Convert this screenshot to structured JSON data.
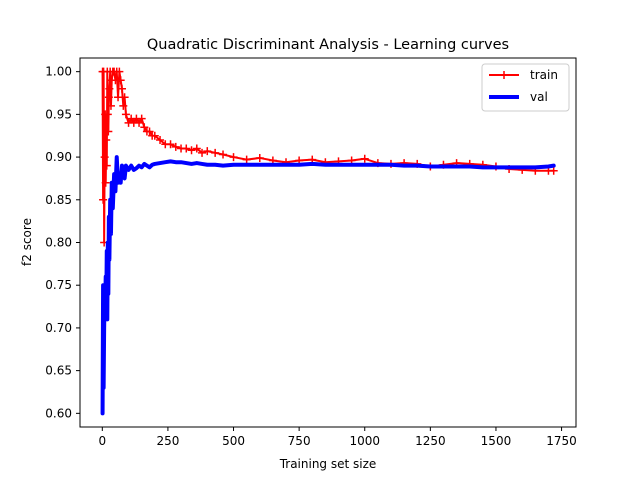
{
  "chart_data": {
    "type": "line",
    "title": "Quadratic Discriminant Analysis - Learning curves",
    "xlabel": "Training set size",
    "ylabel": "f2 score",
    "xlim": [
      -85,
      1805
    ],
    "ylim": [
      0.584,
      1.016
    ],
    "xticks": [
      0,
      250,
      500,
      750,
      1000,
      1250,
      1500,
      1750
    ],
    "yticks": [
      0.6,
      0.65,
      0.7,
      0.75,
      0.8,
      0.85,
      0.9,
      0.95,
      1.0
    ],
    "ytick_labels": [
      "0.60",
      "0.65",
      "0.70",
      "0.75",
      "0.80",
      "0.85",
      "0.90",
      "0.95",
      "1.00"
    ],
    "grid": false,
    "legend_position": "top-right",
    "series": [
      {
        "name": "train",
        "color": "#ff0000",
        "marker": "plus",
        "x": [
          1,
          3,
          5,
          7,
          9,
          11,
          13,
          15,
          17,
          19,
          21,
          23,
          25,
          27,
          30,
          33,
          36,
          40,
          45,
          50,
          55,
          60,
          65,
          70,
          75,
          80,
          85,
          90,
          100,
          110,
          120,
          130,
          140,
          150,
          160,
          170,
          180,
          190,
          200,
          220,
          240,
          260,
          280,
          300,
          320,
          340,
          360,
          380,
          400,
          430,
          460,
          500,
          550,
          600,
          650,
          700,
          750,
          800,
          850,
          900,
          950,
          1000,
          1050,
          1100,
          1150,
          1200,
          1250,
          1300,
          1350,
          1400,
          1450,
          1500,
          1550,
          1600,
          1650,
          1700,
          1720
        ],
        "y": [
          1.0,
          0.85,
          1.0,
          0.8,
          0.9,
          0.95,
          0.87,
          0.92,
          0.89,
          1.0,
          0.95,
          0.93,
          0.97,
          0.98,
          1.0,
          0.96,
          0.99,
          1.0,
          1.0,
          0.99,
          1.0,
          0.97,
          1.0,
          0.99,
          0.98,
          0.96,
          0.97,
          0.95,
          0.94,
          0.945,
          0.94,
          0.945,
          0.94,
          0.945,
          0.935,
          0.93,
          0.93,
          0.925,
          0.925,
          0.92,
          0.915,
          0.915,
          0.912,
          0.91,
          0.91,
          0.908,
          0.91,
          0.905,
          0.907,
          0.905,
          0.903,
          0.9,
          0.897,
          0.899,
          0.896,
          0.894,
          0.896,
          0.897,
          0.894,
          0.895,
          0.896,
          0.898,
          0.893,
          0.892,
          0.893,
          0.892,
          0.889,
          0.891,
          0.893,
          0.892,
          0.891,
          0.889,
          0.886,
          0.885,
          0.884,
          0.884,
          0.884
        ]
      },
      {
        "name": "val",
        "color": "#0000ff",
        "marker": "none",
        "x": [
          1,
          3,
          5,
          7,
          9,
          11,
          13,
          15,
          17,
          19,
          21,
          23,
          25,
          27,
          30,
          33,
          36,
          40,
          45,
          50,
          55,
          60,
          65,
          70,
          75,
          80,
          85,
          90,
          100,
          110,
          120,
          130,
          140,
          150,
          160,
          170,
          180,
          190,
          200,
          220,
          240,
          260,
          280,
          300,
          320,
          340,
          360,
          380,
          400,
          430,
          460,
          500,
          550,
          600,
          650,
          700,
          750,
          800,
          850,
          900,
          950,
          1000,
          1050,
          1100,
          1150,
          1200,
          1250,
          1300,
          1350,
          1400,
          1450,
          1500,
          1550,
          1600,
          1650,
          1700,
          1720
        ],
        "y": [
          0.6,
          0.75,
          0.63,
          0.7,
          0.74,
          0.73,
          0.76,
          0.72,
          0.79,
          0.71,
          0.8,
          0.74,
          0.83,
          0.78,
          0.85,
          0.81,
          0.87,
          0.84,
          0.88,
          0.86,
          0.9,
          0.87,
          0.88,
          0.87,
          0.89,
          0.88,
          0.875,
          0.89,
          0.885,
          0.89,
          0.885,
          0.887,
          0.89,
          0.888,
          0.892,
          0.89,
          0.888,
          0.891,
          0.892,
          0.893,
          0.894,
          0.895,
          0.894,
          0.894,
          0.893,
          0.892,
          0.893,
          0.892,
          0.891,
          0.891,
          0.89,
          0.891,
          0.891,
          0.891,
          0.891,
          0.891,
          0.891,
          0.892,
          0.891,
          0.891,
          0.891,
          0.891,
          0.891,
          0.891,
          0.89,
          0.89,
          0.889,
          0.889,
          0.889,
          0.889,
          0.888,
          0.888,
          0.888,
          0.888,
          0.888,
          0.889,
          0.89
        ]
      }
    ]
  }
}
